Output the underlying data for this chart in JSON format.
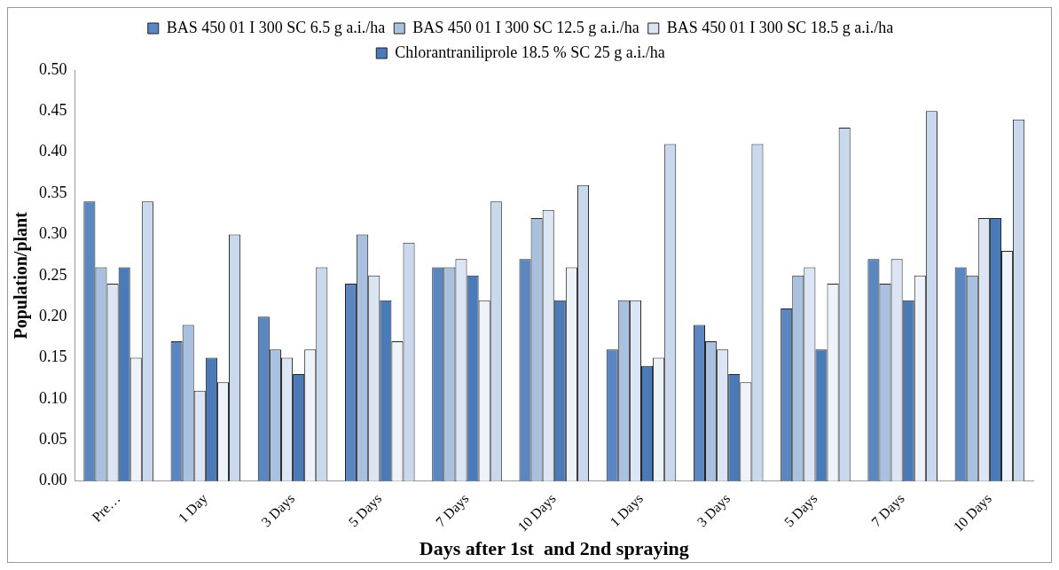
{
  "chart_data": {
    "type": "bar",
    "xlabel": "Days after 1st  and 2nd spraying",
    "ylabel": "Population/plant",
    "categories": [
      "Pre…",
      "1 Day",
      "3 Days",
      "5 Days",
      "7 Days",
      "10 Days",
      "1 Days",
      "3 Days",
      "5 Days",
      "7 Days",
      "10 Days"
    ],
    "series": [
      {
        "name": "BAS 450 01 I 300 SC 6.5 g a.i./ha",
        "color": "#5b86c0",
        "values": [
          0.34,
          0.17,
          0.2,
          0.24,
          0.26,
          0.27,
          0.16,
          0.19,
          0.21,
          0.27,
          0.26
        ]
      },
      {
        "name": "BAS 450 01 I 300 SC 12.5 g a.i./ha",
        "color": "#a9c0de",
        "values": [
          0.26,
          0.19,
          0.16,
          0.3,
          0.26,
          0.32,
          0.22,
          0.17,
          0.25,
          0.24,
          0.25
        ]
      },
      {
        "name": "BAS 450 01 I 300 SC 18.5 g a.i./ha",
        "color": "#dbe5f3",
        "values": [
          0.24,
          0.11,
          0.15,
          0.25,
          0.27,
          0.33,
          0.22,
          0.16,
          0.26,
          0.27,
          0.32
        ]
      },
      {
        "name": "Chlorantraniliprole 18.5 % SC 25 g a.i./ha",
        "color": "#4a7ab8",
        "values": [
          0.26,
          0.15,
          0.13,
          0.22,
          0.25,
          0.22,
          0.14,
          0.13,
          0.16,
          0.22,
          0.32
        ]
      },
      {
        "color": "#eef2f9",
        "values": [
          0.15,
          0.12,
          0.16,
          0.17,
          0.22,
          0.26,
          0.15,
          0.12,
          0.24,
          0.25,
          0.28
        ]
      },
      {
        "color": "#c9d8ec",
        "values": [
          0.34,
          0.3,
          0.26,
          0.29,
          0.34,
          0.36,
          0.41,
          0.41,
          0.43,
          0.45,
          0.44
        ]
      }
    ],
    "ylim": [
      0,
      0.5
    ],
    "yticks": [
      {
        "value": 0,
        "label": "0.00"
      },
      {
        "value": 0.05,
        "label": "0.05"
      },
      {
        "value": 0.1,
        "label": "0.10"
      },
      {
        "value": 0.15,
        "label": "0.15"
      },
      {
        "value": 0.2,
        "label": "0.20"
      },
      {
        "value": 0.25,
        "label": "0.25"
      },
      {
        "value": 0.3,
        "label": "0.30"
      },
      {
        "value": 0.35,
        "label": "0.35"
      },
      {
        "value": 0.4,
        "label": "0.40"
      },
      {
        "value": 0.45,
        "label": "0.45"
      },
      {
        "value": 0.5,
        "label": "0.50"
      }
    ],
    "grid": false,
    "legend": "top"
  }
}
